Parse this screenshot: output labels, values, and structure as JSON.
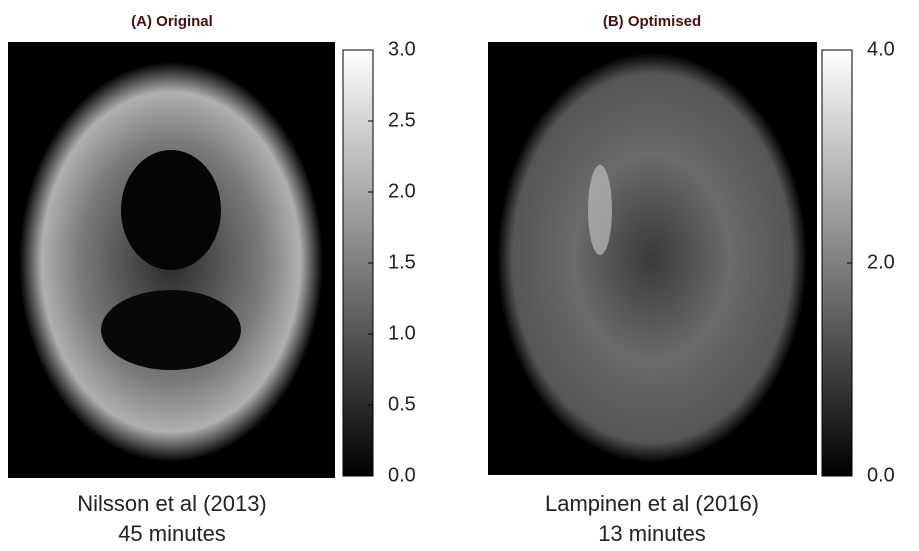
{
  "panels": [
    {
      "title": "(A) Original",
      "colorbar": {
        "lim": [
          0,
          3
        ],
        "ticks": [
          {
            "value": 0,
            "label": "0.0"
          },
          {
            "value": 0.5,
            "label": "0.5"
          },
          {
            "value": 1,
            "label": "1.0"
          },
          {
            "value": 1.5,
            "label": "1.5"
          },
          {
            "value": 2,
            "label": "2.0"
          },
          {
            "value": 2.5,
            "label": "2.5"
          },
          {
            "value": 3,
            "label": "3.0"
          }
        ]
      },
      "caption": [
        "Nilsson et al (2013)",
        "45 minutes"
      ]
    },
    {
      "title": "(B) Optimised",
      "colorbar": {
        "lim": [
          0,
          4
        ],
        "ticks": [
          {
            "value": 0,
            "label": "0.0"
          },
          {
            "value": 2,
            "label": "2.0"
          },
          {
            "value": 4,
            "label": "4.0"
          }
        ]
      },
      "caption": [
        "Lampinen et al (2016)",
        "13 minutes"
      ]
    }
  ]
}
